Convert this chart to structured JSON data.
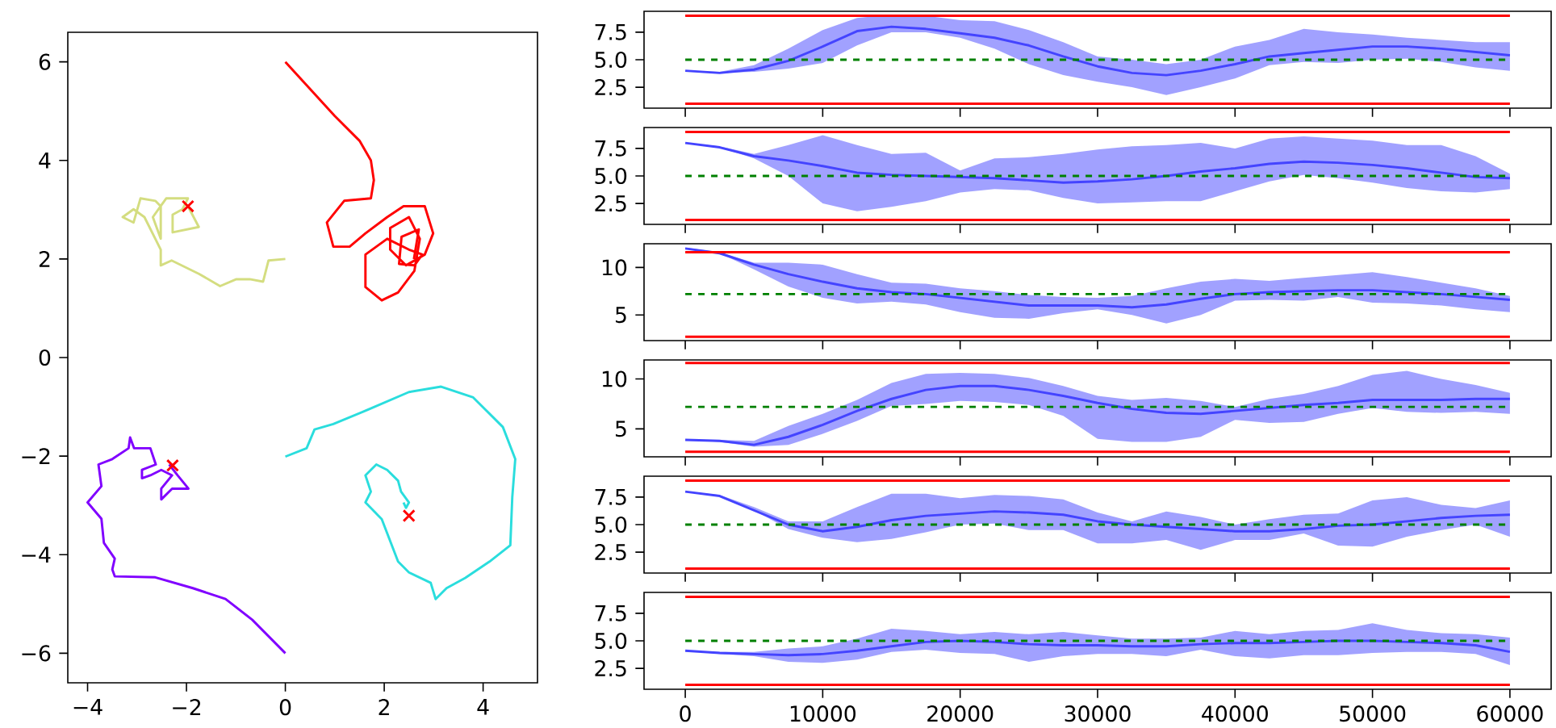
{
  "chart_data": [
    {
      "type": "line",
      "xlim": [
        -4.4,
        5.1
      ],
      "ylim": [
        -6.6,
        6.6
      ],
      "xticks": [
        {
          "value": -4,
          "label": "−4"
        },
        {
          "value": -2,
          "label": "−2"
        },
        0,
        2,
        4
      ],
      "yticks": [
        {
          "value": -6,
          "label": "−6"
        },
        {
          "value": -4,
          "label": "−4"
        },
        {
          "value": -2,
          "label": "−2"
        },
        0,
        2,
        4,
        6
      ],
      "series": [
        {
          "color": "#8000ff",
          "x": [
            0,
            -0.67,
            -1.21,
            -1.87,
            -2.63,
            -3.45,
            -3.5,
            -3.45,
            -3.67,
            -3.72,
            -4.0,
            -3.72,
            -3.78,
            -3.5,
            -3.17,
            -3.14,
            -3.06,
            -2.73,
            -2.62,
            -2.9,
            -2.9,
            -2.73,
            -2.51,
            -2.29,
            -2.51,
            -2.51,
            -2.29,
            -1.96,
            -2.18,
            -2.35
          ],
          "values": [
            -6,
            -5.32,
            -4.9,
            -4.68,
            -4.46,
            -4.44,
            -4.3,
            -4.08,
            -3.76,
            -3.27,
            -2.94,
            -2.61,
            -2.17,
            -2.06,
            -1.84,
            -1.62,
            -1.84,
            -1.84,
            -2.17,
            -2.28,
            -2.45,
            -2.39,
            -2.28,
            -2.39,
            -2.66,
            -2.88,
            -2.66,
            -2.66,
            -2.39,
            -2.17
          ]
        },
        {
          "color": "#2adddd",
          "x": [
            0,
            0.43,
            0.59,
            0.97,
            1.62,
            2.5,
            3.15,
            3.8,
            4.4,
            4.65,
            4.59,
            4.55,
            4.13,
            3.64,
            3.26,
            3.04,
            2.94,
            2.5,
            2.28,
            1.95,
            1.62,
            1.73,
            1.62,
            1.84,
            2.06,
            2.28,
            2.34,
            2.5,
            2.44,
            2.39
          ],
          "values": [
            -2.01,
            -1.84,
            -1.46,
            -1.35,
            -1.08,
            -0.7,
            -0.59,
            -0.81,
            -1.41,
            -2.06,
            -2.83,
            -3.81,
            -4.14,
            -4.47,
            -4.68,
            -4.9,
            -4.57,
            -4.36,
            -4.14,
            -3.28,
            -2.94,
            -2.72,
            -2.39,
            -2.17,
            -2.28,
            -2.5,
            -2.72,
            -2.94,
            -3.05,
            -2.94
          ]
        },
        {
          "color": "#d4dd80",
          "x": [
            0,
            -0.34,
            -0.45,
            -0.72,
            -0.99,
            -1.32,
            -1.75,
            -2.3,
            -2.52,
            -2.52,
            -2.63,
            -2.85,
            -3.07,
            -3.29,
            -3.07,
            -2.93,
            -2.63,
            -2.52,
            -2.52,
            -2.68,
            -2.41,
            -1.97,
            -2.08,
            -2.28,
            -2.28,
            -1.75,
            -1.97
          ],
          "values": [
            2,
            1.97,
            1.54,
            1.59,
            1.59,
            1.45,
            1.7,
            1.97,
            1.87,
            2.19,
            2.41,
            2.85,
            3.01,
            2.85,
            2.74,
            3.23,
            3.18,
            3.07,
            2.41,
            2.85,
            3.23,
            3.23,
            3.01,
            2.9,
            2.54,
            2.65,
            3.07
          ]
        },
        {
          "color": "#ff0000",
          "x": [
            0,
            0.5,
            1.0,
            1.5,
            1.73,
            1.79,
            1.73,
            1.19,
            0.84,
            0.97,
            1.3,
            1.62,
            2.06,
            2.39,
            2.82,
            2.99,
            2.82,
            2.44,
            2.12,
            2.12,
            2.5,
            2.72,
            2.61,
            2.28,
            1.95,
            1.62,
            1.62,
            2.06,
            2.5,
            2.77,
            2.61,
            2.3,
            2.35,
            2.7,
            2.6
          ],
          "values": [
            6,
            5.45,
            4.9,
            4.4,
            4.0,
            3.6,
            3.23,
            3.18,
            2.74,
            2.25,
            2.25,
            2.52,
            2.85,
            3.07,
            3.07,
            2.52,
            2.09,
            1.87,
            2.19,
            2.63,
            2.85,
            2.41,
            1.76,
            1.32,
            1.16,
            1.43,
            2.09,
            2.41,
            2.19,
            2.09,
            1.87,
            1.9,
            2.45,
            2.6,
            2.0
          ]
        },
        {
          "type": "scatter",
          "marker": "cross",
          "color": "#ff0000",
          "x": [
            -1.97,
            -2.28,
            2.5
          ],
          "values": [
            3.07,
            -2.19,
            -3.21
          ]
        }
      ]
    },
    {
      "type": "line",
      "xlim": [
        -3000,
        63000
      ],
      "ylim": [
        0.6,
        9.4
      ],
      "tick_labels": "y",
      "xticks": [
        0,
        10000,
        20000,
        30000,
        40000,
        50000,
        60000
      ],
      "yticks": [
        2.5,
        {
          "value": 5,
          "label": "5.0"
        },
        7.5
      ],
      "x": [
        0,
        2500,
        5000,
        7500,
        10000,
        12500,
        15000,
        17500,
        20000,
        22500,
        25000,
        27500,
        30000,
        32500,
        35000,
        37500,
        40000,
        42500,
        45000,
        47500,
        50000,
        52500,
        55000,
        57500,
        60000
      ],
      "series": [
        {
          "color": "#4444ff",
          "values": [
            4.0,
            3.8,
            4.1,
            4.9,
            6.2,
            7.6,
            8.0,
            7.8,
            7.4,
            7.0,
            6.3,
            5.3,
            4.4,
            3.8,
            3.6,
            4.0,
            4.6,
            5.3,
            5.6,
            5.9,
            6.2,
            6.2,
            6.0,
            5.7,
            5.4
          ],
          "lower": [
            4.0,
            3.8,
            3.9,
            4.2,
            4.7,
            6.3,
            7.5,
            7.5,
            7.0,
            6.0,
            4.6,
            3.6,
            3.0,
            2.5,
            1.8,
            2.5,
            3.3,
            4.5,
            4.8,
            4.7,
            5.0,
            5.1,
            4.8,
            4.3,
            4.0
          ],
          "upper": [
            4.0,
            3.9,
            4.5,
            6.0,
            7.7,
            8.8,
            9.1,
            9.0,
            8.6,
            8.5,
            7.7,
            6.6,
            5.3,
            5.0,
            4.6,
            5.0,
            6.2,
            6.8,
            7.8,
            7.5,
            7.3,
            7.0,
            6.8,
            6.6,
            6.6
          ]
        }
      ],
      "ref_lines": [
        {
          "axis": "y",
          "value": 9,
          "color": "#ff0000"
        },
        {
          "axis": "y",
          "value": 1,
          "color": "#ff0000"
        },
        {
          "axis": "y",
          "value": 5,
          "color": "#008000",
          "line_style": "dashed"
        }
      ]
    },
    {
      "type": "line",
      "xlim": [
        -3000,
        63000
      ],
      "ylim": [
        0.6,
        9.4
      ],
      "tick_labels": "y",
      "xticks": [
        0,
        10000,
        20000,
        30000,
        40000,
        50000,
        60000
      ],
      "yticks": [
        2.5,
        {
          "value": 5,
          "label": "5.0"
        },
        7.5
      ],
      "x": [
        0,
        2500,
        5000,
        7500,
        10000,
        12500,
        15000,
        17500,
        20000,
        22500,
        25000,
        27500,
        30000,
        32500,
        35000,
        37500,
        40000,
        42500,
        45000,
        47500,
        50000,
        52500,
        55000,
        57500,
        60000
      ],
      "series": [
        {
          "color": "#4444ff",
          "values": [
            8.0,
            7.6,
            6.8,
            6.4,
            5.9,
            5.3,
            5.1,
            5.0,
            4.9,
            4.8,
            4.6,
            4.4,
            4.5,
            4.7,
            5.0,
            5.4,
            5.7,
            6.1,
            6.3,
            6.2,
            6.0,
            5.7,
            5.3,
            4.9,
            4.8
          ],
          "lower": [
            8.0,
            7.6,
            6.6,
            5.0,
            2.5,
            1.8,
            2.2,
            2.7,
            3.5,
            3.8,
            3.7,
            3.0,
            2.5,
            2.6,
            2.7,
            2.7,
            3.6,
            4.5,
            5.1,
            4.8,
            4.4,
            3.9,
            3.6,
            3.5,
            3.8
          ],
          "upper": [
            8.0,
            7.7,
            7.0,
            7.8,
            8.7,
            7.8,
            7.0,
            7.1,
            5.5,
            6.6,
            6.7,
            7.0,
            7.4,
            7.7,
            7.8,
            8.0,
            7.5,
            8.4,
            8.6,
            8.4,
            8.2,
            7.8,
            7.8,
            6.8,
            5.2
          ]
        }
      ],
      "ref_lines": [
        {
          "axis": "y",
          "value": 9,
          "color": "#ff0000"
        },
        {
          "axis": "y",
          "value": 1,
          "color": "#ff0000"
        },
        {
          "axis": "y",
          "value": 5,
          "color": "#008000",
          "line_style": "dashed"
        }
      ]
    },
    {
      "type": "line",
      "xlim": [
        -3000,
        63000
      ],
      "ylim": [
        2.3,
        12.5
      ],
      "tick_labels": "y",
      "xticks": [
        0,
        10000,
        20000,
        30000,
        40000,
        50000,
        60000
      ],
      "yticks": [
        5,
        10
      ],
      "x": [
        0,
        2500,
        5000,
        7500,
        10000,
        12500,
        15000,
        17500,
        20000,
        22500,
        25000,
        27500,
        30000,
        32500,
        35000,
        37500,
        40000,
        42500,
        45000,
        47500,
        50000,
        52500,
        55000,
        57500,
        60000
      ],
      "series": [
        {
          "color": "#4444ff",
          "values": [
            12.0,
            11.5,
            10.3,
            9.3,
            8.5,
            7.8,
            7.4,
            7.2,
            6.8,
            6.4,
            6.0,
            6.0,
            6.0,
            5.8,
            6.1,
            6.7,
            7.2,
            7.4,
            7.5,
            7.6,
            7.6,
            7.4,
            7.2,
            6.9,
            6.6
          ],
          "lower": [
            12.0,
            11.5,
            9.8,
            8.0,
            6.8,
            6.2,
            6.4,
            6.1,
            5.3,
            4.7,
            4.6,
            5.2,
            5.6,
            5.0,
            4.1,
            5.0,
            6.5,
            6.6,
            6.5,
            6.9,
            6.3,
            6.2,
            6.0,
            5.6,
            5.3
          ],
          "upper": [
            12.1,
            11.6,
            10.5,
            10.5,
            10.3,
            9.3,
            8.4,
            8.3,
            7.8,
            7.5,
            7.1,
            6.9,
            6.8,
            7.0,
            7.8,
            8.5,
            8.8,
            8.6,
            8.9,
            9.2,
            9.5,
            9.0,
            8.4,
            7.8,
            7.0
          ]
        }
      ],
      "ref_lines": [
        {
          "axis": "y",
          "value": 11.6,
          "color": "#ff0000"
        },
        {
          "axis": "y",
          "value": 2.7,
          "color": "#ff0000"
        },
        {
          "axis": "y",
          "value": 7.2,
          "color": "#008000",
          "line_style": "dashed"
        }
      ]
    },
    {
      "type": "line",
      "xlim": [
        -3000,
        63000
      ],
      "ylim": [
        2.2,
        11.9
      ],
      "tick_labels": "y",
      "xticks": [
        0,
        10000,
        20000,
        30000,
        40000,
        50000,
        60000
      ],
      "yticks": [
        5,
        10
      ],
      "x": [
        0,
        2500,
        5000,
        7500,
        10000,
        12500,
        15000,
        17500,
        20000,
        22500,
        25000,
        27500,
        30000,
        32500,
        35000,
        37500,
        40000,
        42500,
        45000,
        47500,
        50000,
        52500,
        55000,
        57500,
        60000
      ],
      "series": [
        {
          "color": "#4444ff",
          "values": [
            3.9,
            3.8,
            3.4,
            4.2,
            5.4,
            6.8,
            8.0,
            8.9,
            9.3,
            9.3,
            8.9,
            8.3,
            7.6,
            7.0,
            6.6,
            6.5,
            6.8,
            7.1,
            7.4,
            7.6,
            7.9,
            7.9,
            7.9,
            8.0,
            8.0
          ],
          "lower": [
            3.9,
            3.7,
            3.2,
            3.4,
            4.5,
            5.8,
            7.3,
            7.5,
            7.8,
            7.7,
            7.4,
            6.3,
            4.0,
            3.7,
            3.7,
            4.2,
            5.9,
            5.6,
            5.7,
            6.5,
            7.1,
            6.7,
            6.6,
            6.7,
            6.5
          ],
          "upper": [
            3.9,
            3.9,
            3.8,
            5.3,
            6.5,
            7.9,
            9.6,
            10.5,
            10.6,
            10.5,
            10.1,
            9.3,
            8.3,
            7.9,
            8.1,
            7.8,
            7.2,
            8.0,
            8.5,
            9.3,
            10.4,
            10.8,
            10.0,
            9.4,
            8.6
          ]
        }
      ],
      "ref_lines": [
        {
          "axis": "y",
          "value": 11.6,
          "color": "#ff0000"
        },
        {
          "axis": "y",
          "value": 2.7,
          "color": "#ff0000"
        },
        {
          "axis": "y",
          "value": 7.2,
          "color": "#008000",
          "line_style": "dashed"
        }
      ]
    },
    {
      "type": "line",
      "xlim": [
        -3000,
        63000
      ],
      "ylim": [
        0.6,
        9.4
      ],
      "tick_labels": "y",
      "xticks": [
        0,
        10000,
        20000,
        30000,
        40000,
        50000,
        60000
      ],
      "yticks": [
        2.5,
        {
          "value": 5,
          "label": "5.0"
        },
        7.5
      ],
      "x": [
        0,
        2500,
        5000,
        7500,
        10000,
        12500,
        15000,
        17500,
        20000,
        22500,
        25000,
        27500,
        30000,
        32500,
        35000,
        37500,
        40000,
        42500,
        45000,
        47500,
        50000,
        52500,
        55000,
        57500,
        60000
      ],
      "series": [
        {
          "color": "#4444ff",
          "values": [
            8.0,
            7.6,
            6.3,
            5.0,
            4.4,
            4.8,
            5.4,
            5.8,
            6.0,
            6.2,
            6.1,
            5.9,
            5.3,
            5.0,
            4.8,
            4.6,
            4.4,
            4.4,
            4.6,
            4.9,
            5.0,
            5.3,
            5.6,
            5.8,
            5.9
          ],
          "lower": [
            8.0,
            7.6,
            6.3,
            4.6,
            3.8,
            3.4,
            3.7,
            4.3,
            5.0,
            5.1,
            4.5,
            4.5,
            3.3,
            3.3,
            3.6,
            2.7,
            3.6,
            3.6,
            4.2,
            3.1,
            3.0,
            3.9,
            4.5,
            5.0,
            3.9
          ],
          "upper": [
            8.0,
            7.7,
            6.6,
            5.3,
            5.3,
            6.6,
            7.8,
            7.8,
            7.4,
            7.7,
            7.6,
            7.3,
            6.1,
            5.3,
            6.2,
            5.7,
            5.0,
            5.5,
            5.9,
            6.0,
            7.2,
            7.5,
            6.8,
            6.5,
            7.2
          ]
        }
      ],
      "ref_lines": [
        {
          "axis": "y",
          "value": 9,
          "color": "#ff0000"
        },
        {
          "axis": "y",
          "value": 1,
          "color": "#ff0000"
        },
        {
          "axis": "y",
          "value": 5,
          "color": "#008000",
          "line_style": "dashed"
        }
      ]
    },
    {
      "type": "line",
      "xlim": [
        -3000,
        63000
      ],
      "ylim": [
        0.6,
        9.4
      ],
      "xticks": [
        0,
        10000,
        20000,
        30000,
        40000,
        50000,
        60000
      ],
      "yticks": [
        2.5,
        {
          "value": 5,
          "label": "5.0"
        },
        7.5
      ],
      "x": [
        0,
        2500,
        5000,
        7500,
        10000,
        12500,
        15000,
        17500,
        20000,
        22500,
        25000,
        27500,
        30000,
        32500,
        35000,
        37500,
        40000,
        42500,
        45000,
        47500,
        50000,
        52500,
        55000,
        57500,
        60000
      ],
      "series": [
        {
          "color": "#4444ff",
          "values": [
            4.1,
            3.9,
            3.8,
            3.7,
            3.8,
            4.1,
            4.5,
            4.9,
            5.0,
            4.9,
            4.7,
            4.6,
            4.6,
            4.5,
            4.5,
            4.7,
            4.8,
            4.8,
            4.9,
            5.0,
            5.0,
            4.9,
            4.8,
            4.6,
            4.0
          ],
          "lower": [
            4.1,
            3.8,
            3.6,
            3.1,
            3.0,
            3.3,
            4.0,
            4.2,
            3.9,
            3.8,
            3.1,
            3.6,
            3.8,
            3.8,
            3.6,
            4.2,
            3.6,
            3.4,
            3.7,
            3.7,
            3.9,
            4.0,
            4.0,
            3.8,
            2.8
          ],
          "upper": [
            4.1,
            4.0,
            4.0,
            4.3,
            4.5,
            5.2,
            6.1,
            5.9,
            5.6,
            5.8,
            5.6,
            5.8,
            5.5,
            5.2,
            5.2,
            5.3,
            5.9,
            5.6,
            5.9,
            6.0,
            6.6,
            6.0,
            5.7,
            5.6,
            5.3
          ]
        }
      ],
      "ref_lines": [
        {
          "axis": "y",
          "value": 9,
          "color": "#ff0000"
        },
        {
          "axis": "y",
          "value": 1,
          "color": "#ff0000"
        },
        {
          "axis": "y",
          "value": 5,
          "color": "#008000",
          "line_style": "dashed"
        }
      ]
    }
  ]
}
